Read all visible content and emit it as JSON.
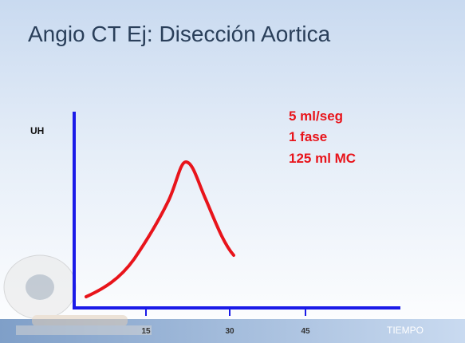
{
  "title": "Angio CT  Ej: Disección Aortica",
  "graph": {
    "y_axis_label": "UH",
    "x_axis_label": "TIEMPO",
    "x_ticks": [
      "15",
      "30",
      "45"
    ]
  },
  "annotations": [
    "5 ml/seg",
    "1 fase",
    "125 ml MC"
  ]
}
